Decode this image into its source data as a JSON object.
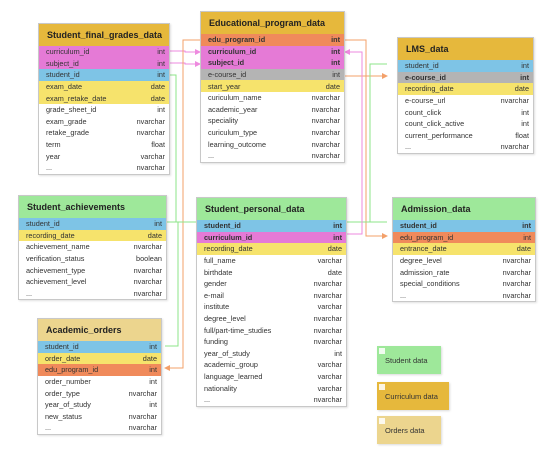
{
  "colors": {
    "student": "#9ee89a",
    "curriculum": "#e6b83c",
    "orders": "#ecd58e",
    "key_blue": "#7ec4e6",
    "key_pink": "#e57ad6",
    "key_orange": "#f08a5b",
    "key_gray": "#b4b4b4",
    "key_yellow": "#f6e36c",
    "wire_green": "#8ee48a",
    "wire_pink": "#ee8adf",
    "wire_orange": "#f3a06a",
    "wire_blue": "#7ec4e6"
  },
  "tables": [
    {
      "key": "final_grades",
      "title": "Student_final_grades_data",
      "header_color": "curriculum",
      "columns": [
        {
          "name": "curriculum_id",
          "type": "int",
          "color": "key_pink"
        },
        {
          "name": "subject_id",
          "type": "int",
          "color": "key_pink"
        },
        {
          "name": "student_id",
          "type": "int",
          "color": "key_blue"
        },
        {
          "name": "exam_date",
          "type": "date",
          "color": "key_yellow"
        },
        {
          "name": "exam_retake_date",
          "type": "date",
          "color": "key_yellow"
        },
        {
          "name": "grade_sheet_id",
          "type": "int"
        },
        {
          "name": "exam_grade",
          "type": "nvarchar"
        },
        {
          "name": "retake_grade",
          "type": "nvarchar"
        },
        {
          "name": "term",
          "type": "float"
        },
        {
          "name": "year",
          "type": "varchar"
        },
        {
          "name": "...",
          "type": "nvarchar"
        }
      ]
    },
    {
      "key": "edu_program",
      "title": "Educational_program_data",
      "header_color": "curriculum",
      "columns": [
        {
          "name": "edu_program_id",
          "type": "int",
          "color": "key_orange",
          "bold": true
        },
        {
          "name": "curriculum_id",
          "type": "int",
          "color": "key_pink",
          "bold": true
        },
        {
          "name": "subject_id",
          "type": "int",
          "color": "key_pink",
          "bold": true
        },
        {
          "name": "e-course_id",
          "type": "int",
          "color": "key_gray"
        },
        {
          "name": "start_year",
          "type": "date",
          "color": "key_yellow"
        },
        {
          "name": "curiculum_name",
          "type": "nvarchar"
        },
        {
          "name": "academic_year",
          "type": "nvarchar"
        },
        {
          "name": "speciality",
          "type": "nvarchar"
        },
        {
          "name": "curiculum_type",
          "type": "nvarchar"
        },
        {
          "name": "learning_outcome",
          "type": "nvarchar"
        },
        {
          "name": "...",
          "type": "nvarchar"
        }
      ]
    },
    {
      "key": "lms",
      "title": "LMS_data",
      "header_color": "curriculum",
      "columns": [
        {
          "name": "student_id",
          "type": "int",
          "color": "key_blue"
        },
        {
          "name": "e-course_id",
          "type": "int",
          "color": "key_gray",
          "bold": true
        },
        {
          "name": "recording_date",
          "type": "date",
          "color": "key_yellow"
        },
        {
          "name": "e-course_url",
          "type": "nvarchar"
        },
        {
          "name": "count_click",
          "type": "int"
        },
        {
          "name": "count_click_active",
          "type": "int"
        },
        {
          "name": "current_performance",
          "type": "float"
        },
        {
          "name": "...",
          "type": "nvarchar"
        }
      ]
    },
    {
      "key": "achievements",
      "title": "Student_achievements",
      "header_color": "student",
      "columns": [
        {
          "name": "student_id",
          "type": "int",
          "color": "key_blue"
        },
        {
          "name": "recording_date",
          "type": "date",
          "color": "key_yellow"
        },
        {
          "name": "achievement_name",
          "type": "nvarchar"
        },
        {
          "name": "verification_status",
          "type": "boolean"
        },
        {
          "name": "achievement_type",
          "type": "nvarchar"
        },
        {
          "name": "achievement_level",
          "type": "nvarchar"
        },
        {
          "name": "...",
          "type": "nvarchar"
        }
      ]
    },
    {
      "key": "personal",
      "title": "Student_personal_data",
      "header_color": "student",
      "columns": [
        {
          "name": "student_id",
          "type": "int",
          "color": "key_blue",
          "bold": true
        },
        {
          "name": "curriculum_id",
          "type": "int",
          "color": "key_pink",
          "bold": true
        },
        {
          "name": "recording_date",
          "type": "date",
          "color": "key_yellow"
        },
        {
          "name": "full_name",
          "type": "varchar"
        },
        {
          "name": "birthdate",
          "type": "date"
        },
        {
          "name": "gender",
          "type": "nvarchar"
        },
        {
          "name": "e-mail",
          "type": "nvarchar"
        },
        {
          "name": "institute",
          "type": "varchar"
        },
        {
          "name": "degree_level",
          "type": "nvarchar"
        },
        {
          "name": "full/part-time_studies",
          "type": "nvarchar"
        },
        {
          "name": "funding",
          "type": "nvarchar"
        },
        {
          "name": "year_of_study",
          "type": "int"
        },
        {
          "name": "academic_group",
          "type": "varchar"
        },
        {
          "name": "language_learned",
          "type": "varchar"
        },
        {
          "name": "nationality",
          "type": "varchar"
        },
        {
          "name": "...",
          "type": "nvarchar"
        }
      ]
    },
    {
      "key": "admission",
      "title": "Admission_data",
      "header_color": "student",
      "columns": [
        {
          "name": "student_id",
          "type": "int",
          "color": "key_blue",
          "bold": true
        },
        {
          "name": "edu_program_id",
          "type": "int",
          "color": "key_orange"
        },
        {
          "name": "entrance_date",
          "type": "date",
          "color": "key_yellow"
        },
        {
          "name": "degree_level",
          "type": "nvarchar"
        },
        {
          "name": "admission_rate",
          "type": "nvarchar"
        },
        {
          "name": "special_conditions",
          "type": "nvarchar"
        },
        {
          "name": "...",
          "type": "nvarchar"
        }
      ]
    },
    {
      "key": "orders",
      "title": "Academic_orders",
      "header_color": "orders",
      "columns": [
        {
          "name": "student_id",
          "type": "int",
          "color": "key_blue"
        },
        {
          "name": "order_date",
          "type": "date",
          "color": "key_yellow"
        },
        {
          "name": "edu_program_id",
          "type": "int",
          "color": "key_orange"
        },
        {
          "name": "order_number",
          "type": "int"
        },
        {
          "name": "order_type",
          "type": "nvarchar"
        },
        {
          "name": "year_of_study",
          "type": "int"
        },
        {
          "name": "new_status",
          "type": "nvarchar"
        },
        {
          "name": "...",
          "type": "nvarchar"
        }
      ]
    }
  ],
  "legend": [
    {
      "label": "Student data",
      "color": "student"
    },
    {
      "label": "Curriculum data",
      "color": "curriculum"
    },
    {
      "label": "Orders data",
      "color": "orders"
    }
  ]
}
